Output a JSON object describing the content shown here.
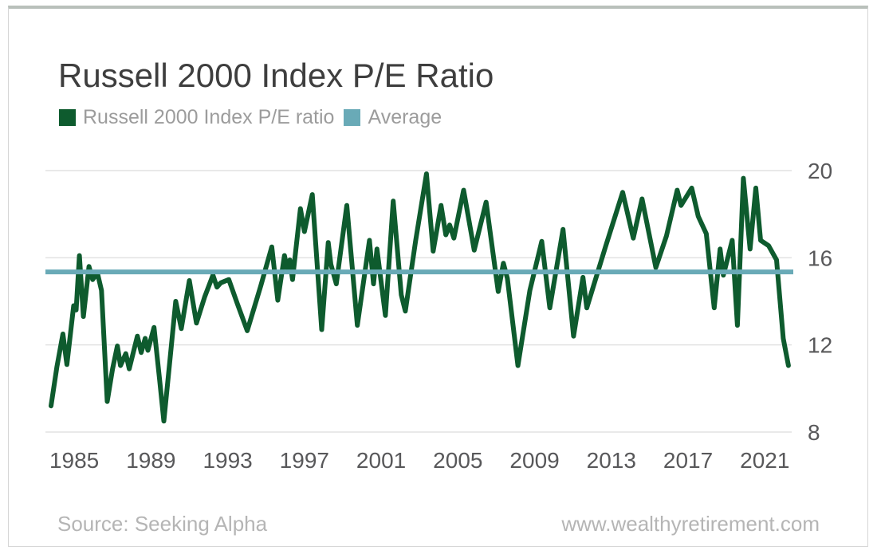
{
  "title": "Russell 2000 Index P/E Ratio",
  "legend": [
    {
      "label": "Russell 2000 Index P/E ratio",
      "color": "#0e5b2e"
    },
    {
      "label": "Average",
      "color": "#69aab7"
    }
  ],
  "footer": {
    "source": "Source: Seeking Alpha",
    "website": "www.wealthyretirement.com"
  },
  "colors": {
    "series_green": "#0e5b2e",
    "average_teal": "#69aab7",
    "grid": "#e2e2e2",
    "tick_label": "#58585a",
    "title_text": "#3e3e3e",
    "legend_text": "#9c9c9c",
    "footer_text": "#b5b5b5",
    "card_border": "#d6d6d6",
    "card_border_top": "#b9c0bb"
  },
  "chart_data": {
    "type": "line",
    "title": "Russell 2000 Index P/E Ratio",
    "xlabel": "",
    "ylabel": "",
    "grid": "horizontal",
    "legend_position": "top-left",
    "x_axis": {
      "range": [
        1983.5,
        2022.4
      ],
      "ticks": [
        1985,
        1989,
        1993,
        1997,
        2001,
        2005,
        2009,
        2013,
        2017,
        2021
      ]
    },
    "y_axis": {
      "range": [
        8,
        20
      ],
      "ticks": [
        20,
        16,
        12,
        8
      ],
      "side": "right"
    },
    "series": [
      {
        "name": "Russell 2000 Index P/E ratio",
        "color": "#0e5b2e",
        "points": [
          [
            1983.79,
            9.2
          ],
          [
            1984.1,
            11.0
          ],
          [
            1984.41,
            12.5
          ],
          [
            1984.62,
            11.1
          ],
          [
            1984.97,
            13.8
          ],
          [
            1985.1,
            13.6
          ],
          [
            1985.27,
            16.1
          ],
          [
            1985.48,
            13.3
          ],
          [
            1985.77,
            15.6
          ],
          [
            1985.96,
            15.0
          ],
          [
            1986.21,
            15.3
          ],
          [
            1986.42,
            14.5
          ],
          [
            1986.72,
            9.4
          ],
          [
            1987.0,
            10.9
          ],
          [
            1987.25,
            11.95
          ],
          [
            1987.41,
            11.05
          ],
          [
            1987.69,
            11.6
          ],
          [
            1987.87,
            10.9
          ],
          [
            1988.29,
            12.4
          ],
          [
            1988.49,
            11.65
          ],
          [
            1988.7,
            12.3
          ],
          [
            1988.84,
            11.75
          ],
          [
            1989.16,
            12.8
          ],
          [
            1989.45,
            10.4
          ],
          [
            1989.67,
            8.5
          ],
          [
            1990.0,
            11.4
          ],
          [
            1990.29,
            14.0
          ],
          [
            1990.58,
            12.75
          ],
          [
            1991.0,
            14.95
          ],
          [
            1991.37,
            13.0
          ],
          [
            1991.8,
            14.2
          ],
          [
            1992.23,
            15.2
          ],
          [
            1992.44,
            14.65
          ],
          [
            1992.64,
            14.85
          ],
          [
            1993.06,
            15.0
          ],
          [
            1993.5,
            13.9
          ],
          [
            1994.02,
            12.65
          ],
          [
            1994.72,
            14.7
          ],
          [
            1995.3,
            16.5
          ],
          [
            1995.61,
            14.05
          ],
          [
            1995.96,
            16.1
          ],
          [
            1996.1,
            15.5
          ],
          [
            1996.24,
            15.9
          ],
          [
            1996.38,
            15.0
          ],
          [
            1996.79,
            18.25
          ],
          [
            1997.0,
            17.2
          ],
          [
            1997.41,
            18.9
          ],
          [
            1997.9,
            12.7
          ],
          [
            1998.24,
            16.7
          ],
          [
            1998.38,
            15.7
          ],
          [
            1998.66,
            14.8
          ],
          [
            1999.21,
            18.4
          ],
          [
            1999.76,
            12.9
          ],
          [
            2000.39,
            16.8
          ],
          [
            2000.6,
            14.8
          ],
          [
            2000.78,
            16.4
          ],
          [
            2001.22,
            13.35
          ],
          [
            2001.63,
            18.6
          ],
          [
            2002.05,
            14.3
          ],
          [
            2002.26,
            13.55
          ],
          [
            2002.8,
            16.8
          ],
          [
            2003.36,
            19.85
          ],
          [
            2003.71,
            16.3
          ],
          [
            2004.12,
            18.4
          ],
          [
            2004.37,
            17.05
          ],
          [
            2004.57,
            17.5
          ],
          [
            2004.79,
            16.9
          ],
          [
            2005.3,
            19.1
          ],
          [
            2005.85,
            16.35
          ],
          [
            2006.47,
            18.55
          ],
          [
            2007.1,
            14.45
          ],
          [
            2007.37,
            15.75
          ],
          [
            2007.58,
            15.05
          ],
          [
            2008.13,
            11.05
          ],
          [
            2008.75,
            14.5
          ],
          [
            2009.37,
            16.75
          ],
          [
            2009.79,
            13.7
          ],
          [
            2010.48,
            17.3
          ],
          [
            2011.03,
            12.4
          ],
          [
            2011.52,
            15.1
          ],
          [
            2011.72,
            13.7
          ],
          [
            2012.69,
            16.5
          ],
          [
            2013.59,
            19.0
          ],
          [
            2014.14,
            16.9
          ],
          [
            2014.6,
            18.7
          ],
          [
            2015.32,
            15.55
          ],
          [
            2015.87,
            17.0
          ],
          [
            2016.43,
            19.1
          ],
          [
            2016.63,
            18.4
          ],
          [
            2017.19,
            19.2
          ],
          [
            2017.53,
            17.9
          ],
          [
            2017.95,
            17.1
          ],
          [
            2018.36,
            13.7
          ],
          [
            2018.67,
            16.4
          ],
          [
            2018.84,
            15.2
          ],
          [
            2019.3,
            16.8
          ],
          [
            2019.57,
            12.9
          ],
          [
            2019.88,
            19.65
          ],
          [
            2020.23,
            16.4
          ],
          [
            2020.53,
            19.2
          ],
          [
            2020.78,
            16.8
          ],
          [
            2021.2,
            16.55
          ],
          [
            2021.61,
            15.9
          ],
          [
            2021.96,
            12.3
          ],
          [
            2022.23,
            11.05
          ]
        ]
      },
      {
        "name": "Average",
        "color": "#69aab7",
        "style": "constant",
        "value": 15.35
      }
    ]
  }
}
